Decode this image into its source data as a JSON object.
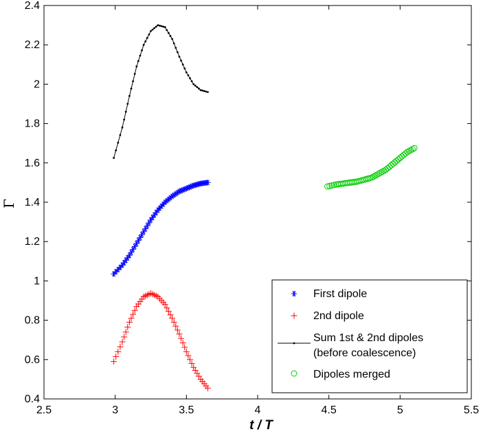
{
  "chart_data": {
    "type": "scatter",
    "xlabel": "t / T",
    "ylabel": "Γ",
    "xlim": [
      2.5,
      5.5
    ],
    "ylim": [
      0.4,
      2.4
    ],
    "xticks": [
      2.5,
      3,
      3.5,
      4,
      4.5,
      5,
      5.5
    ],
    "yticks": [
      0.4,
      0.6,
      0.8,
      1,
      1.2,
      1.4,
      1.6,
      1.8,
      2,
      2.2,
      2.4
    ],
    "xtick_labels": [
      "2.5",
      "3",
      "3.5",
      "4",
      "4.5",
      "5",
      "5.5"
    ],
    "ytick_labels": [
      "0.4",
      "0.6",
      "0.8",
      "1",
      "1.2",
      "1.4",
      "1.6",
      "1.8",
      "2",
      "2.2",
      "2.4"
    ],
    "grid": false,
    "legend_position": "bottom-right",
    "series": [
      {
        "name": "First dipole",
        "marker": "asterisk",
        "color": "#0000ff",
        "points": [
          [
            2.99,
            1.035
          ],
          [
            3.05,
            1.08
          ],
          [
            3.1,
            1.13
          ],
          [
            3.15,
            1.19
          ],
          [
            3.2,
            1.25
          ],
          [
            3.25,
            1.31
          ],
          [
            3.3,
            1.36
          ],
          [
            3.35,
            1.4
          ],
          [
            3.4,
            1.43
          ],
          [
            3.45,
            1.455
          ],
          [
            3.5,
            1.47
          ],
          [
            3.55,
            1.485
          ],
          [
            3.6,
            1.495
          ],
          [
            3.65,
            1.5
          ]
        ]
      },
      {
        "name": "2nd dipole",
        "marker": "plus",
        "color": "#ff0000",
        "points": [
          [
            2.99,
            0.59
          ],
          [
            3.05,
            0.69
          ],
          [
            3.1,
            0.79
          ],
          [
            3.15,
            0.87
          ],
          [
            3.2,
            0.92
          ],
          [
            3.25,
            0.937
          ],
          [
            3.3,
            0.92
          ],
          [
            3.35,
            0.88
          ],
          [
            3.4,
            0.81
          ],
          [
            3.45,
            0.73
          ],
          [
            3.5,
            0.64
          ],
          [
            3.55,
            0.56
          ],
          [
            3.6,
            0.5
          ],
          [
            3.65,
            0.455
          ]
        ]
      },
      {
        "name": "Sum 1st & 2nd dipoles",
        "name_line2": "(before coalescence)",
        "marker": "dot-line",
        "color": "#000000",
        "points": [
          [
            2.99,
            1.625
          ],
          [
            3.05,
            1.78
          ],
          [
            3.1,
            1.94
          ],
          [
            3.15,
            2.09
          ],
          [
            3.2,
            2.2
          ],
          [
            3.25,
            2.27
          ],
          [
            3.3,
            2.3
          ],
          [
            3.35,
            2.29
          ],
          [
            3.4,
            2.23
          ],
          [
            3.45,
            2.14
          ],
          [
            3.5,
            2.06
          ],
          [
            3.55,
            2.0
          ],
          [
            3.6,
            1.97
          ],
          [
            3.65,
            1.96
          ]
        ]
      },
      {
        "name": "Dipoles merged",
        "marker": "circle",
        "color": "#00cc00",
        "points": [
          [
            4.49,
            1.48
          ],
          [
            4.55,
            1.49
          ],
          [
            4.6,
            1.495
          ],
          [
            4.65,
            1.5
          ],
          [
            4.7,
            1.505
          ],
          [
            4.75,
            1.515
          ],
          [
            4.8,
            1.525
          ],
          [
            4.85,
            1.545
          ],
          [
            4.9,
            1.565
          ],
          [
            4.95,
            1.595
          ],
          [
            5.0,
            1.625
          ],
          [
            5.05,
            1.655
          ],
          [
            5.1,
            1.675
          ]
        ]
      }
    ]
  }
}
